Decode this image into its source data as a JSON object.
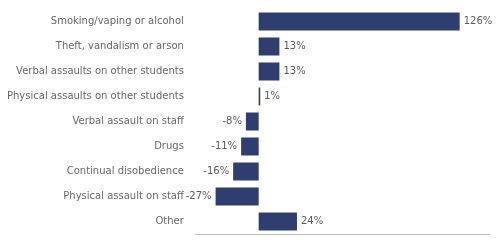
{
  "chart_data": {
    "type": "bar",
    "orientation": "horizontal",
    "categories": [
      "Smoking/vaping or alcohol",
      "Theft, vandalism or arson",
      "Verbal assaults on other students",
      "Physical assaults on other students",
      "Verbal assault on staff",
      "Drugs",
      "Continual disobedience",
      "Physical assault on staff",
      "Other"
    ],
    "values": [
      126,
      13,
      13,
      1,
      -8,
      -11,
      -16,
      -27,
      24
    ],
    "value_labels": [
      "126%",
      "13%",
      "13%",
      "1%",
      "-8%",
      "-11%",
      "-16%",
      "-27%",
      "24%"
    ],
    "color": "#2E3F6F",
    "xlim": [
      -40,
      145
    ],
    "xticks": [],
    "grid": false,
    "data_labels": true,
    "tick_labels": "y"
  }
}
